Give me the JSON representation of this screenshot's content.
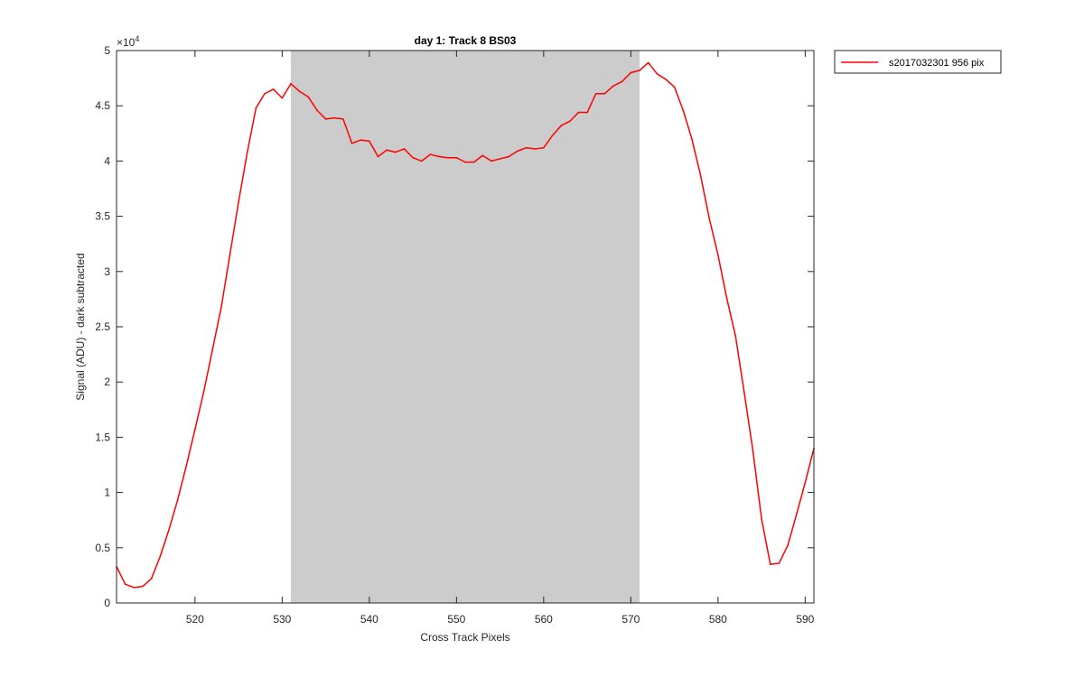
{
  "chart_data": {
    "type": "line",
    "title": "day 1: Track 8  BS03",
    "xlabel": "Cross Track Pixels",
    "ylabel": "Signal (ADU) - dark subtracted",
    "y_exponent_label": "×10",
    "y_exponent_power": "4",
    "xlim": [
      511,
      591
    ],
    "ylim": [
      0,
      5
    ],
    "x_ticks": [
      520,
      530,
      540,
      550,
      560,
      570,
      580,
      590
    ],
    "x_tick_labels": [
      "520",
      "530",
      "540",
      "550",
      "560",
      "570",
      "580",
      "590"
    ],
    "y_ticks": [
      0,
      0.5,
      1,
      1.5,
      2,
      2.5,
      3,
      3.5,
      4,
      4.5,
      5
    ],
    "y_tick_labels": [
      "0",
      "0.5",
      "1",
      "1.5",
      "2",
      "2.5",
      "3",
      "3.5",
      "4",
      "4.5",
      "5"
    ],
    "grid": false,
    "legend_position": "outside-top-right",
    "shaded_region": {
      "x": [
        531,
        571
      ],
      "color": "#cccccc"
    },
    "series": [
      {
        "name": "s2017032301 956 pix",
        "color": "#ff0000",
        "x": [
          511,
          512,
          513,
          514,
          515,
          516,
          517,
          518,
          519,
          520,
          521,
          522,
          523,
          524,
          525,
          526,
          527,
          528,
          529,
          530,
          531,
          532,
          533,
          534,
          535,
          536,
          537,
          538,
          539,
          540,
          541,
          542,
          543,
          544,
          545,
          546,
          547,
          548,
          549,
          550,
          551,
          552,
          553,
          554,
          555,
          556,
          557,
          558,
          559,
          560,
          561,
          562,
          563,
          564,
          565,
          566,
          567,
          568,
          569,
          570,
          571,
          572,
          573,
          574,
          575,
          576,
          577,
          578,
          579,
          580,
          581,
          582,
          583,
          584,
          585,
          586,
          587,
          588,
          589,
          590,
          591
        ],
        "y": [
          0.33,
          0.17,
          0.14,
          0.15,
          0.22,
          0.42,
          0.66,
          0.93,
          1.24,
          1.57,
          1.91,
          2.29,
          2.67,
          3.15,
          3.63,
          4.08,
          4.48,
          4.61,
          4.65,
          4.57,
          4.7,
          4.63,
          4.58,
          4.46,
          4.38,
          4.39,
          4.38,
          4.16,
          4.19,
          4.18,
          4.04,
          4.1,
          4.08,
          4.11,
          4.03,
          4.0,
          4.06,
          4.04,
          4.03,
          4.03,
          3.99,
          3.99,
          4.05,
          4.0,
          4.02,
          4.04,
          4.09,
          4.12,
          4.11,
          4.12,
          4.23,
          4.32,
          4.36,
          4.44,
          4.44,
          4.61,
          4.61,
          4.68,
          4.72,
          4.8,
          4.82,
          4.89,
          4.79,
          4.74,
          4.67,
          4.46,
          4.2,
          3.87,
          3.48,
          3.15,
          2.76,
          2.42,
          1.91,
          1.38,
          0.76,
          0.35,
          0.36,
          0.52,
          0.8,
          1.09,
          1.4
        ]
      }
    ]
  },
  "legend": {
    "entries": [
      {
        "label": "s2017032301 956 pix",
        "color": "#ff0000"
      }
    ]
  }
}
